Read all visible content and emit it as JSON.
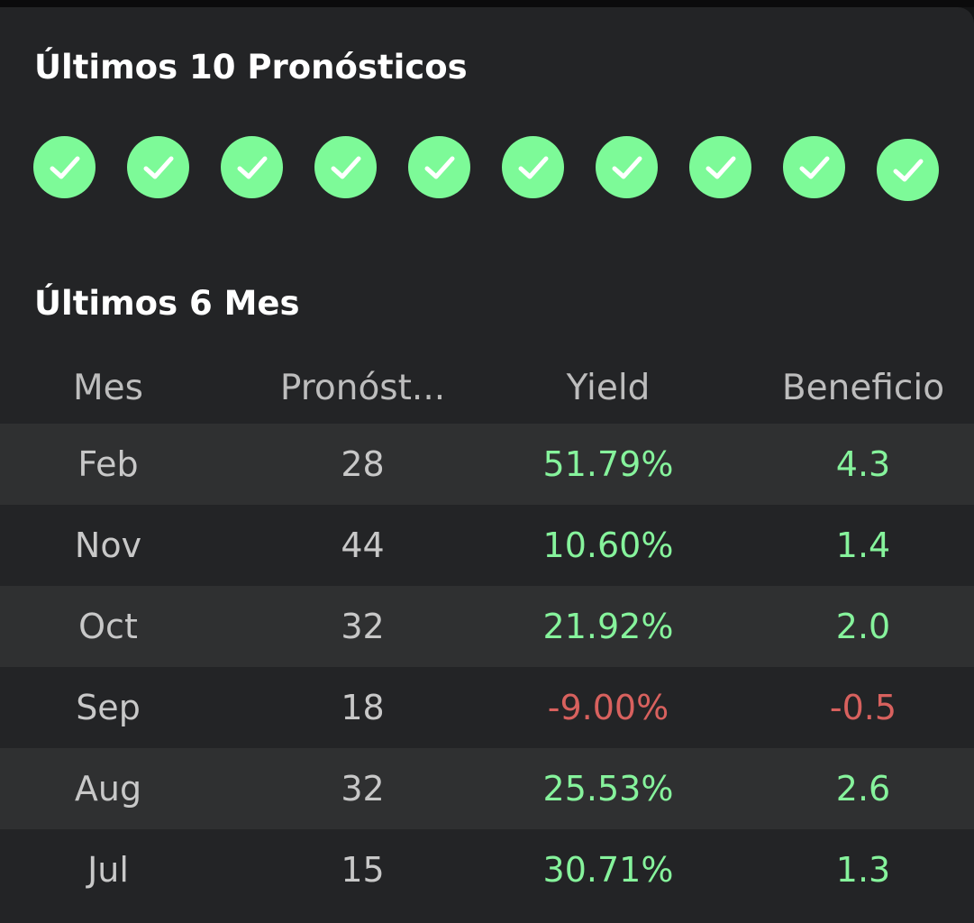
{
  "forecasts": {
    "title": "Últimos 10 Pronósticos",
    "results": [
      "win",
      "win",
      "win",
      "win",
      "win",
      "win",
      "win",
      "win",
      "win",
      "win"
    ],
    "icon": "check-icon",
    "win_color": "#7dfa98"
  },
  "months": {
    "title": "Últimos 6 Mes",
    "columns": [
      "Mes",
      "Pronóst...",
      "Yield",
      "Beneficio"
    ],
    "rows": [
      {
        "mes": "Feb",
        "pronosticos": "28",
        "yield": "51.79%",
        "beneficio": "4.3",
        "status": "positive"
      },
      {
        "mes": "Nov",
        "pronosticos": "44",
        "yield": "10.60%",
        "beneficio": "1.4",
        "status": "positive"
      },
      {
        "mes": "Oct",
        "pronosticos": "32",
        "yield": "21.92%",
        "beneficio": "2.0",
        "status": "positive"
      },
      {
        "mes": "Sep",
        "pronosticos": "18",
        "yield": "-9.00%",
        "beneficio": "-0.5",
        "status": "negative"
      },
      {
        "mes": "Aug",
        "pronosticos": "32",
        "yield": "25.53%",
        "beneficio": "2.6",
        "status": "positive"
      },
      {
        "mes": "Jul",
        "pronosticos": "15",
        "yield": "30.71%",
        "beneficio": "1.3",
        "status": "positive"
      }
    ]
  },
  "colors": {
    "background": "#232426",
    "row_shade": "#2f3031",
    "positive": "#86f39c",
    "negative": "#d8615e"
  }
}
